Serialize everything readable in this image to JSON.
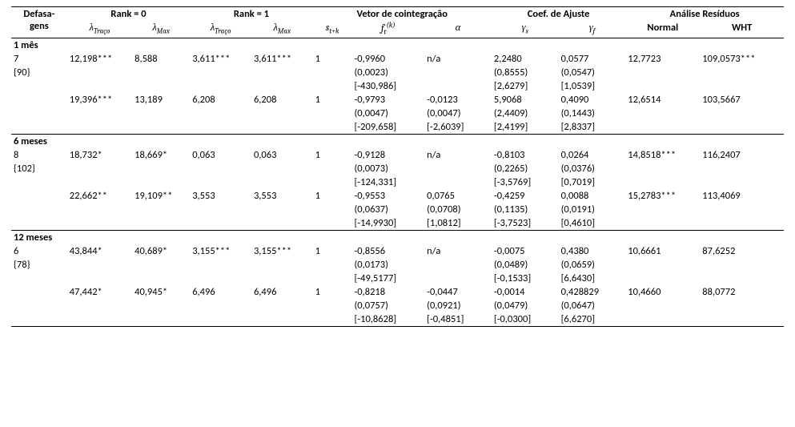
{
  "headers": {
    "defas": "Defasa-\ngens",
    "rank0": "Rank = 0",
    "rank1": "Rank = 1",
    "vcoint": "Vetor de cointegração",
    "cajuste": "Coef. de Ajuste",
    "resid": "Análise Resíduos",
    "ltraco": "λ",
    "ltraco_sub": "Traço",
    "lmax": "λ",
    "lmax_sub": "Max",
    "s_tk": "s",
    "s_tk_sub": "t+k",
    "f": "f",
    "f_sup": "(k)",
    "f_sub": "t",
    "alpha": "α",
    "gs": "γ",
    "gs_sub": "s",
    "gf": "γ",
    "gf_sub": "f",
    "normal": "Normal",
    "wht": "WHT"
  },
  "sections": [
    {
      "title": "1 mês",
      "lag": "7",
      "obs": "{90}",
      "blocks": [
        {
          "r": [
            [
              "12,198***",
              "8,588",
              "3,611***",
              "3,611***",
              "1",
              "-0,9960",
              "n/a",
              "2,2480",
              "0,0577",
              "12,7723",
              "109,0573***"
            ],
            [
              "",
              "",
              "",
              "",
              "",
              "(0,0023)",
              "",
              "(0,8555)",
              "(0,0547)",
              "",
              ""
            ],
            [
              "",
              "",
              "",
              "",
              "",
              "[-430,986]",
              "",
              "[2,6279]",
              "[1,0539]",
              "",
              ""
            ]
          ]
        },
        {
          "r": [
            [
              "19,396***",
              "13,189",
              "6,208",
              "6,208",
              "1",
              "-0,9793",
              "-0,0123",
              "5,9068",
              "0,4090",
              "12,6514",
              "103,5667"
            ],
            [
              "",
              "",
              "",
              "",
              "",
              "(0,0047)",
              "(0,0047)",
              "(2,4409)",
              "(0,1443)",
              "",
              ""
            ],
            [
              "",
              "",
              "",
              "",
              "",
              "[-209,658]",
              "[-2,6039]",
              "[2,4199]",
              "[2,8337]",
              "",
              ""
            ]
          ]
        }
      ]
    },
    {
      "title": "6 meses",
      "lag": "8",
      "obs": "{102}",
      "blocks": [
        {
          "r": [
            [
              "18,732*",
              "18,669*",
              "0,063",
              "0,063",
              "1",
              "-0,9128",
              "n/a",
              "-0,8103",
              "0,0264",
              "14,8518***",
              "116,2407"
            ],
            [
              "",
              "",
              "",
              "",
              "",
              "(0,0073)",
              "",
              "(0,2265)",
              "(0,0376)",
              "",
              ""
            ],
            [
              "",
              "",
              "",
              "",
              "",
              "[-124,331]",
              "",
              "[-3,5769]",
              "[0,7019]",
              "",
              ""
            ]
          ]
        },
        {
          "r": [
            [
              "22,662**",
              "19,109**",
              "3,553",
              "3,553",
              "1",
              "-0,9553",
              "0,0765",
              "-0,4259",
              "0,0088",
              "15,2783***",
              "113,4069"
            ],
            [
              "",
              "",
              "",
              "",
              "",
              "(0,0637)",
              "(0,0708)",
              "(0,1135)",
              "(0,0191)",
              "",
              ""
            ],
            [
              "",
              "",
              "",
              "",
              "",
              "[-14,9930]",
              "[1,0812]",
              "[-3,7523]",
              "[0,4610]",
              "",
              ""
            ]
          ]
        }
      ]
    },
    {
      "title": "12 meses",
      "lag": "6",
      "obs": "{78}",
      "blocks": [
        {
          "r": [
            [
              "43,844*",
              "40,689*",
              "3,155***",
              "3,155***",
              "1",
              "-0,8556",
              "n/a",
              "-0,0075",
              "0,4380",
              "10,6661",
              "87,6252"
            ],
            [
              "",
              "",
              "",
              "",
              "",
              "(0,0173)",
              "",
              "(0,0489)",
              "(0,0659)",
              "",
              ""
            ],
            [
              "",
              "",
              "",
              "",
              "",
              "[-49,5177]",
              "",
              "[-0,1533]",
              "[6,6430]",
              "",
              ""
            ]
          ]
        },
        {
          "r": [
            [
              "47,442*",
              "40,945*",
              "6,496",
              "6,496",
              "1",
              "-0,8218",
              "-0,0447",
              "-0,0014",
              "0,428829",
              "10,4660",
              "88,0772"
            ],
            [
              "",
              "",
              "",
              "",
              "",
              "(0,0757)",
              "(0,0921)",
              "(0,0479)",
              "(0,0647)",
              "",
              ""
            ],
            [
              "",
              "",
              "",
              "",
              "",
              "[-10,8628]",
              "[-0,4851]",
              "[-0,0300]",
              "[6,6270]",
              "",
              ""
            ]
          ]
        }
      ]
    }
  ]
}
